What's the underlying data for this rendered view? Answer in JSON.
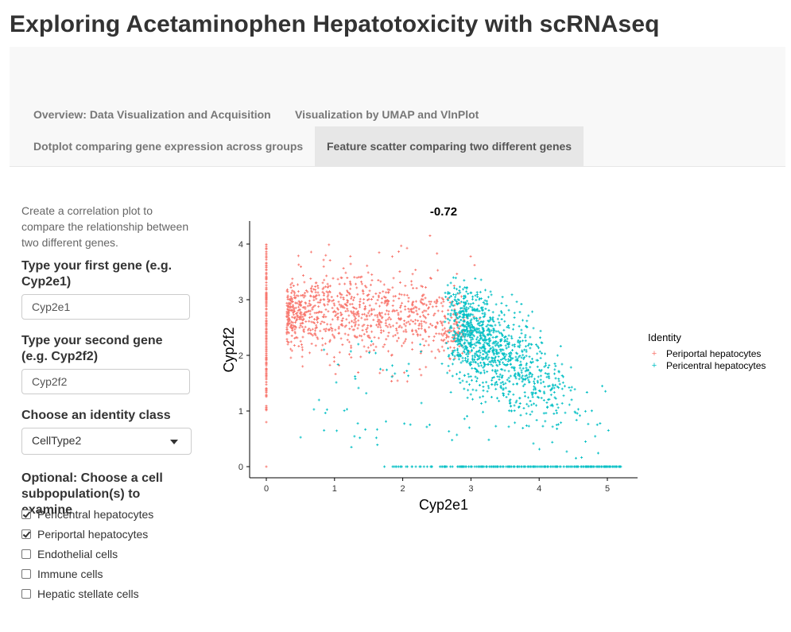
{
  "app": {
    "title": "Exploring Acetaminophen Hepatotoxicity with scRNAseq"
  },
  "tabs": [
    {
      "label": "Overview: Data Visualization and Acquisition",
      "active": false
    },
    {
      "label": "Visualization by UMAP and VlnPlot",
      "active": false
    },
    {
      "label": "Dotplot comparing gene expression across groups",
      "active": false
    },
    {
      "label": "Feature scatter comparing two different genes",
      "active": true
    }
  ],
  "sidebar": {
    "description": "Create a correlation plot to compare the relationship between two different genes.",
    "gene1": {
      "label": "Type your first gene (e.g. Cyp2e1)",
      "value": "Cyp2e1"
    },
    "gene2": {
      "label": "Type your second gene (e.g. Cyp2f2)",
      "value": "Cyp2f2"
    },
    "identity": {
      "label": "Choose an identity class",
      "selected": "CellType2"
    },
    "subpop": {
      "label": "Optional: Choose a cell subpopulation(s) to examine",
      "options": [
        {
          "label": "Pericentral hepatocytes",
          "checked": true
        },
        {
          "label": "Periportal hepatocytes",
          "checked": true
        },
        {
          "label": "Endothelial cells",
          "checked": false
        },
        {
          "label": "Immune cells",
          "checked": false
        },
        {
          "label": "Hepatic stellate cells",
          "checked": false
        }
      ]
    }
  },
  "chart_data": {
    "type": "scatter",
    "title": "-0.72",
    "xlabel": "Cyp2e1",
    "ylabel": "Cyp2f2",
    "xlim": [
      -0.25,
      5.45
    ],
    "ylim": [
      -0.2,
      4.4
    ],
    "xticks": [
      0,
      1,
      2,
      3,
      4,
      5
    ],
    "yticks": [
      0,
      1,
      2,
      3,
      4
    ],
    "grid": false,
    "legend": {
      "title": "Identity",
      "position": "right"
    },
    "series": [
      {
        "name": "Periportal hepatocytes",
        "color": "#F8766D",
        "points_approx": [
          [
            0,
            4.0
          ],
          [
            0,
            0.0
          ],
          [
            0,
            0.8
          ],
          [
            0.3,
            2.8
          ],
          [
            0.5,
            2.6
          ],
          [
            0.7,
            2.9
          ],
          [
            0.9,
            2.7
          ],
          [
            1.0,
            3.2
          ],
          [
            1.2,
            2.8
          ],
          [
            1.5,
            3.0
          ],
          [
            1.8,
            2.7
          ],
          [
            2.2,
            2.6
          ],
          [
            2.4,
            4.15
          ],
          [
            2.6,
            2.8
          ],
          [
            3.0,
            2.4
          ]
        ]
      },
      {
        "name": "Pericentral hepatocytes",
        "color": "#00BFC4",
        "points_approx": [
          [
            0.5,
            1.3
          ],
          [
            1.6,
            0.0
          ],
          [
            2.5,
            0.0
          ],
          [
            3.0,
            2.0
          ],
          [
            3.3,
            1.8
          ],
          [
            3.5,
            2.2
          ],
          [
            3.7,
            1.6
          ],
          [
            3.9,
            1.3
          ],
          [
            4.0,
            1.0
          ],
          [
            4.2,
            0.8
          ],
          [
            4.4,
            0.5
          ],
          [
            4.6,
            0.3
          ],
          [
            4.0,
            2.6
          ],
          [
            3.8,
            3.0
          ],
          [
            5.2,
            0.0
          ]
        ]
      }
    ]
  }
}
